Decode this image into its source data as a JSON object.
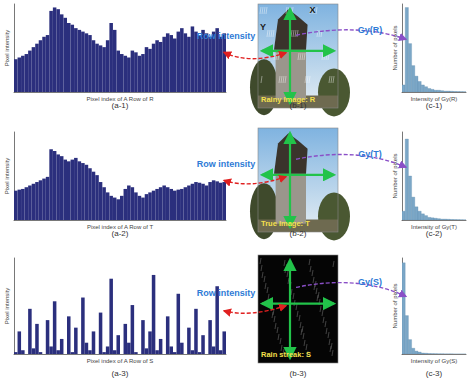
{
  "chart_data": [
    {
      "type": "bar",
      "title": "(a-1)",
      "x_label": "Pixel index of A Row of R",
      "y_label": "Pixel intensity",
      "values": [
        95,
        100,
        105,
        110,
        120,
        130,
        140,
        150,
        160,
        165,
        235,
        245,
        240,
        225,
        215,
        200,
        195,
        185,
        180,
        175,
        170,
        165,
        150,
        140,
        135,
        130,
        150,
        200,
        180,
        120,
        110,
        105,
        100,
        120,
        115,
        105,
        110,
        130,
        125,
        140,
        150,
        145,
        160,
        170,
        165,
        155,
        175,
        185,
        170,
        160,
        190,
        175,
        165,
        180,
        170,
        160,
        175,
        185,
        160,
        170
      ],
      "color": "#2b2f7d",
      "ylim": [
        0,
        255
      ],
      "tick_labels": false,
      "grid": false
    },
    {
      "type": "bar",
      "title": "(a-2)",
      "x_label": "Pixel index of A Row of T",
      "y_label": "Pixel intensity",
      "values": [
        85,
        88,
        90,
        95,
        100,
        105,
        110,
        115,
        120,
        125,
        205,
        200,
        190,
        185,
        175,
        170,
        175,
        180,
        170,
        165,
        160,
        150,
        140,
        130,
        110,
        95,
        80,
        70,
        65,
        60,
        70,
        90,
        100,
        95,
        80,
        70,
        65,
        75,
        80,
        85,
        90,
        95,
        100,
        95,
        90,
        85,
        88,
        90,
        95,
        100,
        105,
        110,
        108,
        105,
        100,
        110,
        115,
        112,
        108,
        110
      ],
      "color": "#2b2f7d",
      "ylim": [
        0,
        255
      ],
      "tick_labels": false,
      "grid": false
    },
    {
      "type": "bar",
      "title": "(a-3)",
      "x_label": "Pixel index of A Row of S",
      "y_label": "Pixel intensity",
      "values": [
        5,
        60,
        10,
        0,
        120,
        15,
        80,
        5,
        0,
        90,
        20,
        140,
        10,
        40,
        0,
        100,
        5,
        70,
        0,
        150,
        30,
        10,
        60,
        0,
        110,
        5,
        20,
        200,
        10,
        50,
        0,
        80,
        30,
        130,
        5,
        0,
        90,
        15,
        60,
        210,
        10,
        40,
        0,
        100,
        20,
        5,
        160,
        30,
        0,
        70,
        10,
        120,
        5,
        50,
        0,
        90,
        20,
        180,
        10,
        60
      ],
      "color": "#2b2f7d",
      "ylim": [
        0,
        255
      ],
      "tick_labels": false,
      "grid": false
    },
    {
      "type": "histogram",
      "title": "(c-1)",
      "x_label": "Intensity of Gy(R)",
      "y_label": "Number of pixels",
      "bins": [
        0,
        1,
        2,
        3,
        4,
        5,
        6,
        7,
        8,
        9,
        10,
        11,
        12,
        13,
        14,
        15,
        16,
        17,
        18,
        19,
        20
      ],
      "values": [
        8,
        96,
        55,
        30,
        18,
        12,
        8,
        6,
        4,
        3,
        2,
        2,
        1.5,
        1,
        1,
        0.8,
        0.6,
        0.5,
        0.4,
        0.3
      ],
      "color": "#7ba7c7",
      "xlim": [
        0,
        20
      ],
      "ylim": [
        0,
        100
      ],
      "tick_labels": false,
      "grid": false
    },
    {
      "type": "histogram",
      "title": "(c-2)",
      "x_label": "Intensity of Gy(T)",
      "y_label": "Number of pixels",
      "bins": [
        0,
        1,
        2,
        3,
        4,
        5,
        6,
        7,
        8,
        9,
        10,
        11,
        12,
        13,
        14,
        15,
        16,
        17,
        18,
        19,
        20
      ],
      "values": [
        10,
        92,
        50,
        26,
        15,
        10,
        7,
        5,
        3,
        2.5,
        2,
        1.5,
        1,
        1,
        0.8,
        0.6,
        0.5,
        0.4,
        0.3,
        0.2
      ],
      "color": "#7ba7c7",
      "xlim": [
        0,
        20
      ],
      "ylim": [
        0,
        100
      ],
      "tick_labels": false,
      "grid": false
    },
    {
      "type": "histogram",
      "title": "(c-3)",
      "x_label": "Intensity of Gy(S)",
      "y_label": "Number of pixels",
      "bins": [
        0,
        1,
        2,
        3,
        4,
        5,
        6,
        7,
        8,
        9,
        10,
        11,
        12,
        13,
        14,
        15,
        16,
        17,
        18,
        19,
        20
      ],
      "values": [
        95,
        40,
        15,
        6,
        3,
        2,
        1,
        0.8,
        0.5,
        0.4,
        0.3,
        0.2,
        0.2,
        0.1,
        0.1,
        0.1,
        0,
        0,
        0,
        0
      ],
      "color": "#7ba7c7",
      "xlim": [
        0,
        20
      ],
      "ylim": [
        0,
        100
      ],
      "tick_labels": false,
      "grid": false
    }
  ],
  "images": [
    {
      "label": "Rainy Image: R",
      "caption": "(b-1)",
      "kind": "rainy",
      "gradient": "Gy(R)"
    },
    {
      "label": "True Image: T",
      "caption": "(b-2)",
      "kind": "clean",
      "gradient": "Gy(T)"
    },
    {
      "label": "Rain streak: S",
      "caption": "(b-3)",
      "kind": "streak",
      "gradient": "Gy(S)"
    }
  ],
  "annotations": {
    "row_intensity": "Row intensity",
    "x_axis": "X",
    "y_axis": "Y"
  }
}
